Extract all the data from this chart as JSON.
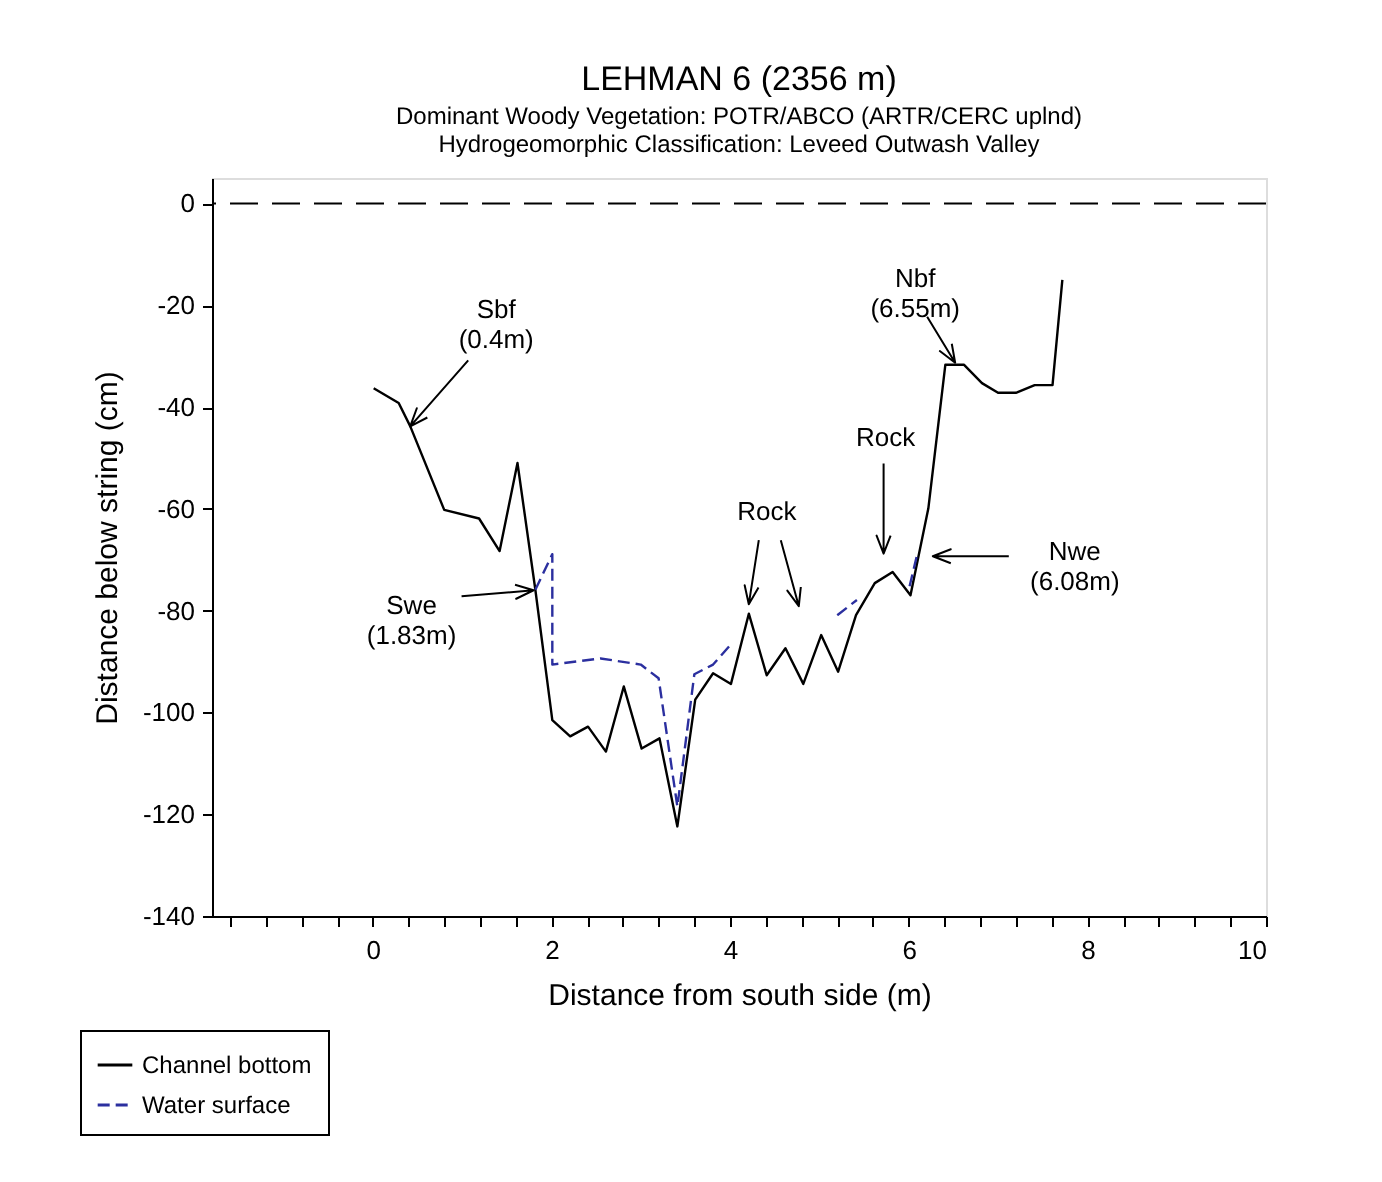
{
  "chart_data": {
    "type": "line",
    "title": "LEHMAN 6 (2356 m)",
    "subtitle": [
      "Dominant Woody Vegetation: POTR/ABCO (ARTR/CERC uplnd)",
      "Hydrogeomorphic Classification: Leveed Outwash Valley"
    ],
    "xlabel": "Distance from south side (m)",
    "ylabel": "Distance below string (cm)",
    "series": [
      {
        "name": "Channel bottom",
        "color": "#000000",
        "line_style": "solid",
        "x": [
          0.01,
          0.29,
          0.42,
          0.8,
          1.19,
          1.42,
          1.62,
          1.82,
          2.01,
          2.21,
          2.41,
          2.61,
          2.81,
          3.01,
          3.21,
          3.41,
          3.61,
          3.81,
          4.01,
          4.21,
          4.41,
          4.62,
          4.82,
          5.02,
          5.21,
          5.41,
          5.62,
          5.82,
          6.02,
          6.22,
          6.41,
          6.62,
          6.82,
          7.0,
          7.2,
          7.41,
          7.61,
          7.72
        ],
        "values": [
          -36.3,
          -39.2,
          -43.8,
          -60.2,
          -61.9,
          -68.3,
          -51.0,
          -75.9,
          -101.5,
          -104.7,
          -102.8,
          -107.7,
          -94.9,
          -107.1,
          -105.1,
          -122.4,
          -97.5,
          -92.3,
          -94.4,
          -80.6,
          -92.7,
          -87.4,
          -94.4,
          -84.8,
          -92.0,
          -80.9,
          -74.6,
          -72.4,
          -77.0,
          -59.9,
          -31.7,
          -31.7,
          -35.3,
          -37.2,
          -37.2,
          -35.7,
          -35.7,
          -15
        ]
      },
      {
        "name": "Water surface",
        "color": "#2b2f9f",
        "line_style": "dashed",
        "x": [
          1.82,
          2.01,
          2.01,
          2.55,
          3.0,
          3.2,
          3.41,
          3.6,
          3.81,
          4.02,
          4.6,
          5.2,
          5.42,
          5.7,
          6.01,
          6.09
        ],
        "values": [
          -75.9,
          -68.9,
          -90.6,
          -89.4,
          -90.6,
          -93.3,
          -118.5,
          -92.5,
          -90.6,
          -86.4,
          null,
          -80.9,
          -77.9,
          null,
          -75.2,
          -69.3
        ]
      }
    ],
    "xlim": [
      -1.8,
      10
    ],
    "ylim": [
      -140,
      5
    ],
    "xticks": [
      {
        "value": -1.6,
        "label": null
      },
      {
        "value": -1.2,
        "label": null
      },
      {
        "value": -0.8,
        "label": null
      },
      {
        "value": -0.4,
        "label": null
      },
      0,
      {
        "value": 0.4,
        "label": null
      },
      {
        "value": 0.8,
        "label": null
      },
      {
        "value": 1.2,
        "label": null
      },
      {
        "value": 1.6,
        "label": null
      },
      2,
      {
        "value": 2.4,
        "label": null
      },
      {
        "value": 2.8,
        "label": null
      },
      {
        "value": 3.2,
        "label": null
      },
      {
        "value": 3.6,
        "label": null
      },
      4,
      {
        "value": 4.4,
        "label": null
      },
      {
        "value": 4.8,
        "label": null
      },
      {
        "value": 5.2,
        "label": null
      },
      {
        "value": 5.6,
        "label": null
      },
      6,
      {
        "value": 6.4,
        "label": null
      },
      {
        "value": 6.8,
        "label": null
      },
      {
        "value": 7.2,
        "label": null
      },
      {
        "value": 7.6,
        "label": null
      },
      8,
      {
        "value": 8.4,
        "label": null
      },
      {
        "value": 8.8,
        "label": null
      },
      {
        "value": 9.2,
        "label": null
      },
      {
        "value": 9.6,
        "label": null
      },
      10
    ],
    "yticks": [
      0,
      -20,
      -40,
      -60,
      -80,
      -100,
      -120,
      -140
    ],
    "ref_lines": [
      {
        "axis": "y",
        "value": 0,
        "color": "#000000",
        "line_style": "dashed"
      }
    ],
    "annotations": [
      "Sbf\n(0.4m)",
      {
        "text": "Swe\n(1.83m)",
        "x": 1.8,
        "y": -76
      },
      "Rock",
      "Rock",
      {
        "text": "Nbf\n(6.55m)",
        "x": 6.52,
        "y": -31.3
      },
      "Nwe\n(6.08m)"
    ],
    "grid": false,
    "legend": "bottom left",
    "marker": "none"
  }
}
